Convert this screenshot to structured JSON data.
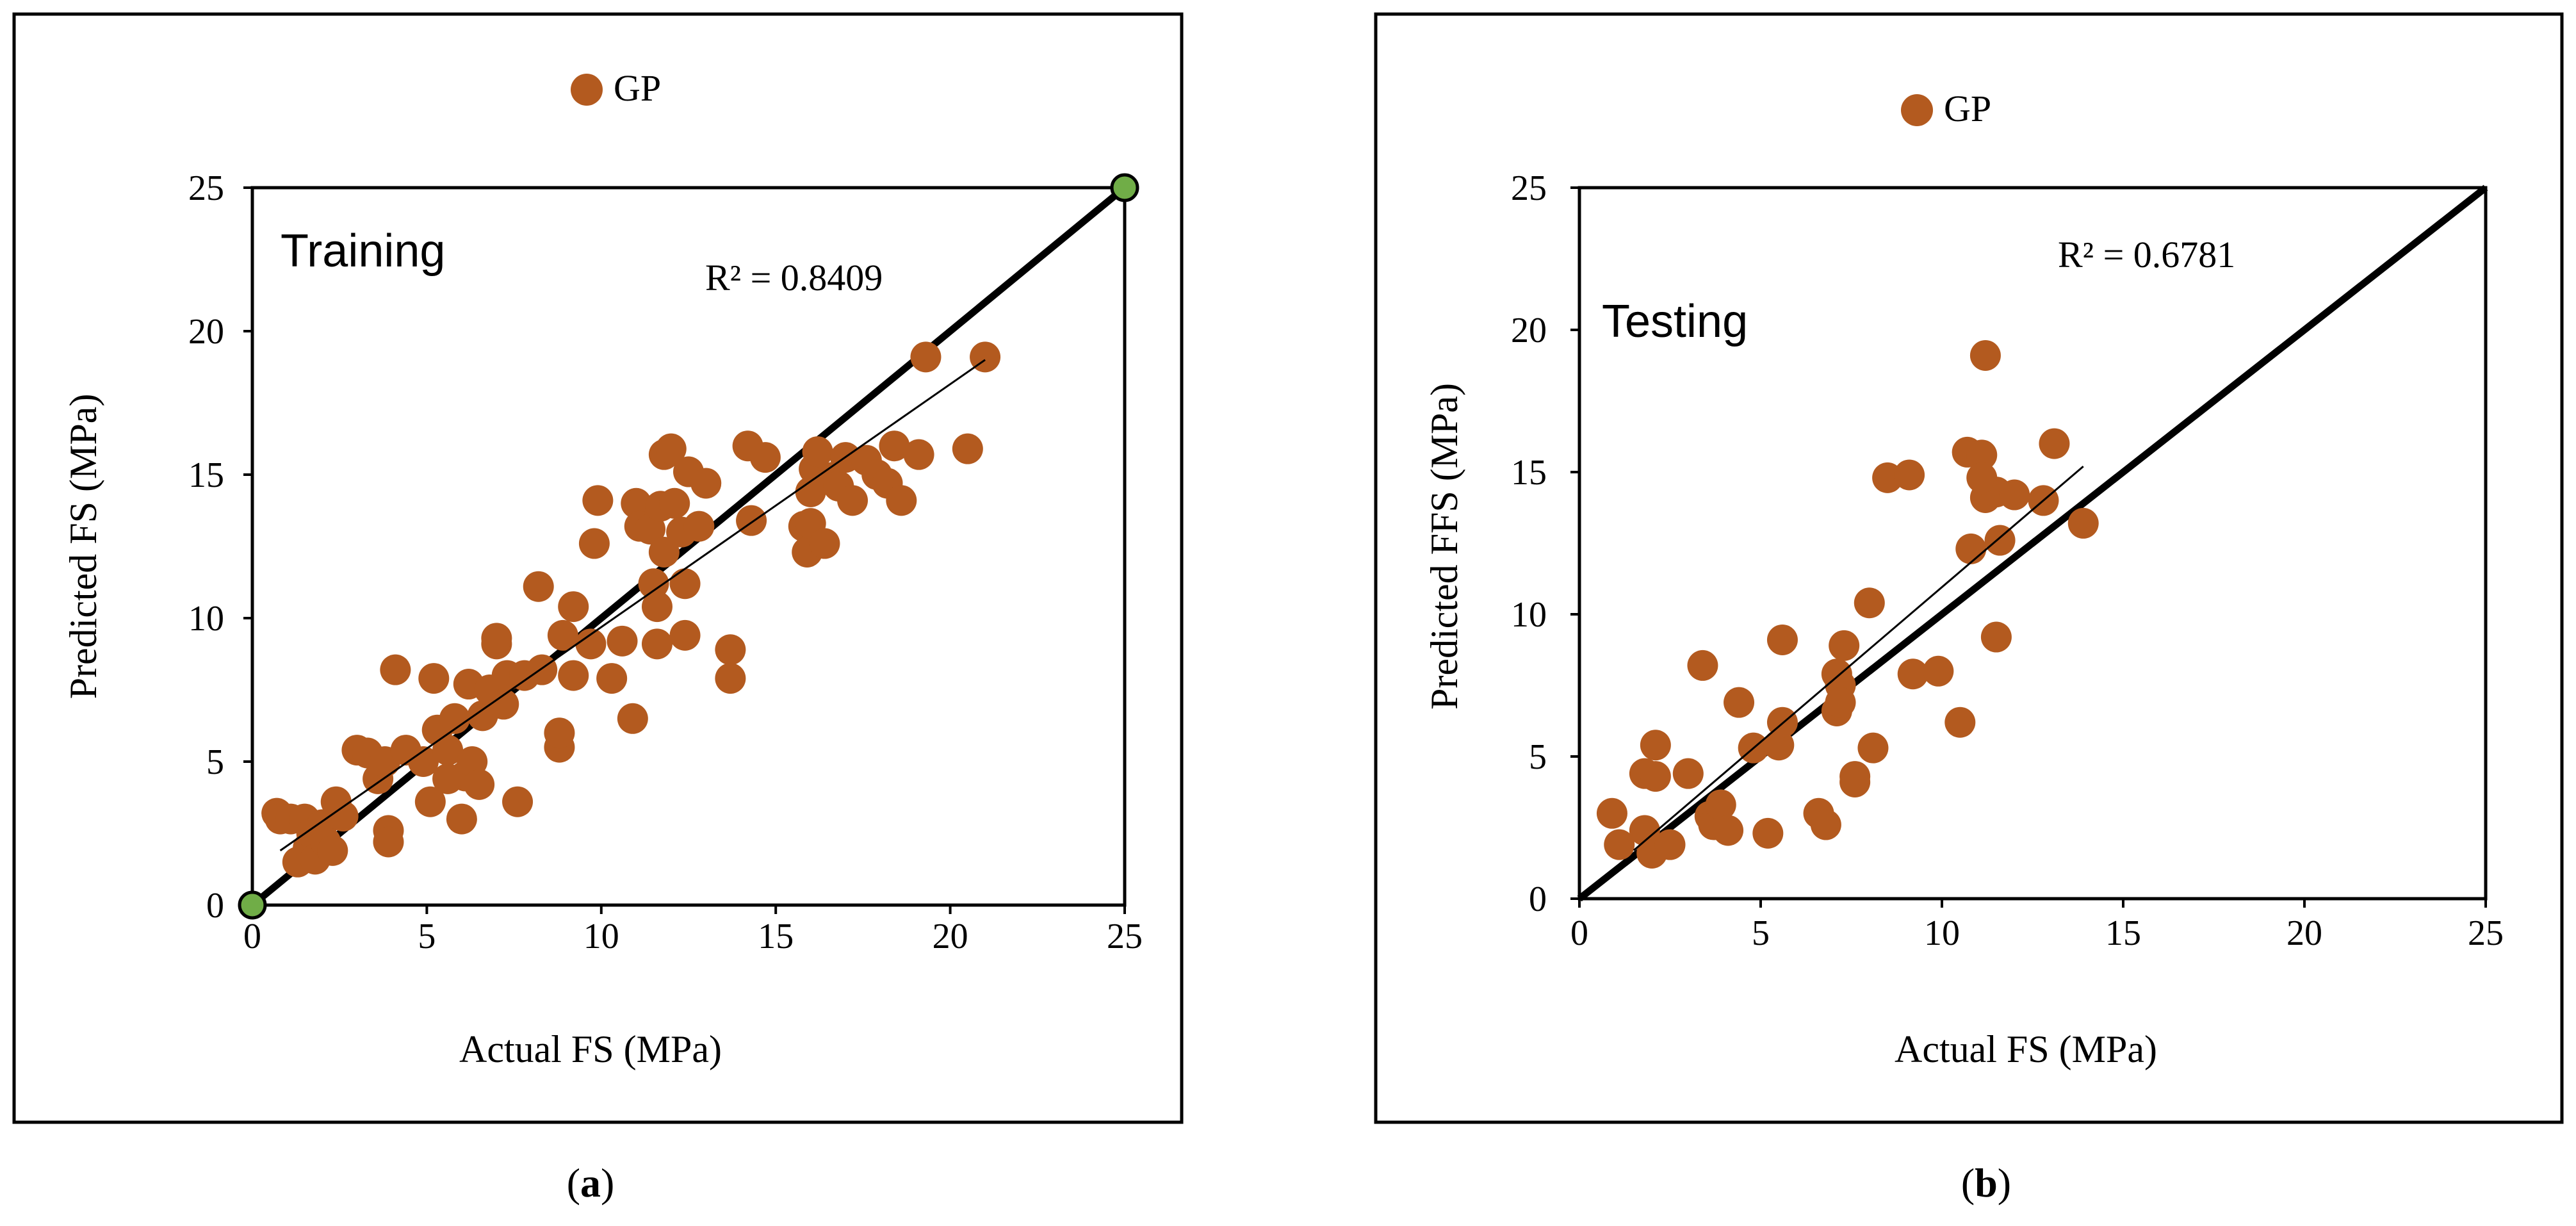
{
  "colors": {
    "point": "#b35a1f",
    "endpoint": "#70ad47"
  },
  "chart_data": [
    {
      "type": "scatter",
      "panel_title": "Training",
      "legend": "GP",
      "xlabel": "Actual FS (MPa)",
      "ylabel": "Predicted FS (MPa)",
      "xlim": [
        0,
        25
      ],
      "ylim": [
        0,
        25
      ],
      "xticks": [
        "0",
        "5",
        "10",
        "15",
        "20",
        "25"
      ],
      "yticks": [
        "0",
        "5",
        "10",
        "15",
        "20",
        "25"
      ],
      "r2_label": "R² = 0.8409",
      "caption_letter": "a",
      "identity_line": [
        [
          0,
          0
        ],
        [
          25,
          25
        ]
      ],
      "trend_line": [
        [
          0.8,
          1.9
        ],
        [
          21,
          19
        ]
      ],
      "endpoints": [
        [
          0,
          0
        ],
        [
          25,
          25
        ]
      ],
      "points": [
        [
          0.7,
          3.2
        ],
        [
          0.8,
          3.0
        ],
        [
          1.1,
          3.0
        ],
        [
          1.3,
          1.5
        ],
        [
          1.5,
          3.0
        ],
        [
          1.6,
          2.0
        ],
        [
          1.7,
          2.5
        ],
        [
          1.8,
          1.6
        ],
        [
          2.0,
          2.8
        ],
        [
          2.1,
          2.2
        ],
        [
          2.3,
          1.9
        ],
        [
          2.4,
          3.6
        ],
        [
          2.6,
          3.1
        ],
        [
          3.0,
          5.4
        ],
        [
          3.3,
          5.3
        ],
        [
          3.6,
          4.4
        ],
        [
          3.8,
          5.0
        ],
        [
          3.9,
          2.6
        ],
        [
          3.9,
          2.2
        ],
        [
          4.1,
          8.2
        ],
        [
          4.4,
          5.4
        ],
        [
          4.9,
          5.0
        ],
        [
          5.1,
          3.6
        ],
        [
          5.2,
          7.9
        ],
        [
          5.3,
          6.1
        ],
        [
          5.6,
          4.4
        ],
        [
          5.6,
          5.4
        ],
        [
          5.8,
          6.5
        ],
        [
          6.0,
          3.0
        ],
        [
          6.1,
          4.5
        ],
        [
          6.2,
          7.7
        ],
        [
          6.3,
          5.0
        ],
        [
          6.5,
          4.2
        ],
        [
          6.6,
          6.6
        ],
        [
          6.8,
          7.5
        ],
        [
          7.0,
          9.1
        ],
        [
          7.0,
          9.3
        ],
        [
          7.2,
          7.0
        ],
        [
          7.3,
          8.0
        ],
        [
          7.6,
          3.6
        ],
        [
          7.8,
          8.0
        ],
        [
          8.2,
          11.1
        ],
        [
          8.3,
          8.2
        ],
        [
          8.8,
          5.5
        ],
        [
          8.8,
          6.0
        ],
        [
          8.9,
          9.4
        ],
        [
          9.2,
          8.0
        ],
        [
          9.2,
          10.4
        ],
        [
          9.7,
          9.1
        ],
        [
          9.8,
          12.6
        ],
        [
          9.9,
          14.1
        ],
        [
          10.3,
          7.9
        ],
        [
          10.6,
          9.2
        ],
        [
          10.9,
          6.5
        ],
        [
          11.0,
          14.0
        ],
        [
          11.1,
          13.2
        ],
        [
          11.4,
          13.1
        ],
        [
          11.5,
          11.2
        ],
        [
          11.6,
          9.1
        ],
        [
          11.6,
          10.4
        ],
        [
          11.7,
          13.9
        ],
        [
          11.8,
          15.7
        ],
        [
          11.8,
          12.3
        ],
        [
          12.0,
          15.9
        ],
        [
          12.1,
          14.0
        ],
        [
          12.3,
          13.0
        ],
        [
          12.4,
          11.2
        ],
        [
          12.4,
          9.4
        ],
        [
          12.5,
          15.1
        ],
        [
          12.8,
          13.2
        ],
        [
          13.0,
          14.7
        ],
        [
          13.7,
          8.9
        ],
        [
          13.7,
          7.9
        ],
        [
          14.2,
          16.0
        ],
        [
          14.3,
          13.4
        ],
        [
          14.7,
          15.6
        ],
        [
          15.8,
          13.2
        ],
        [
          15.9,
          12.3
        ],
        [
          16.0,
          13.3
        ],
        [
          16.0,
          14.4
        ],
        [
          16.1,
          15.2
        ],
        [
          16.2,
          15.8
        ],
        [
          16.4,
          12.6
        ],
        [
          16.6,
          14.9
        ],
        [
          16.8,
          14.6
        ],
        [
          17.0,
          15.6
        ],
        [
          17.2,
          14.1
        ],
        [
          17.6,
          15.5
        ],
        [
          17.9,
          15.0
        ],
        [
          18.2,
          14.7
        ],
        [
          18.4,
          16.0
        ],
        [
          18.6,
          14.1
        ],
        [
          19.1,
          15.7
        ],
        [
          19.3,
          19.1
        ],
        [
          20.5,
          15.9
        ],
        [
          21.0,
          19.1
        ]
      ]
    },
    {
      "type": "scatter",
      "panel_title": "Testing",
      "legend": "GP",
      "xlabel": "Actual FS (MPa)",
      "ylabel": "Predicted  FFS (MPa)",
      "xlim": [
        0,
        25
      ],
      "ylim": [
        0,
        25
      ],
      "xticks": [
        "0",
        "5",
        "10",
        "15",
        "20",
        "25"
      ],
      "yticks": [
        "0",
        "5",
        "10",
        "15",
        "20",
        "25"
      ],
      "r2_label": "R² = 0.6781",
      "caption_letter": "b",
      "identity_line": [
        [
          0,
          0
        ],
        [
          25,
          25
        ]
      ],
      "trend_line": [
        [
          1.5,
          1.7
        ],
        [
          13.9,
          15.2
        ]
      ],
      "points": [
        [
          0.9,
          3.0
        ],
        [
          1.1,
          1.9
        ],
        [
          1.8,
          4.4
        ],
        [
          1.8,
          2.4
        ],
        [
          2.0,
          1.6
        ],
        [
          2.1,
          4.3
        ],
        [
          2.1,
          5.4
        ],
        [
          2.5,
          1.9
        ],
        [
          3.0,
          4.4
        ],
        [
          3.4,
          8.2
        ],
        [
          3.6,
          2.9
        ],
        [
          3.7,
          2.6
        ],
        [
          3.9,
          3.3
        ],
        [
          4.1,
          2.4
        ],
        [
          4.4,
          6.9
        ],
        [
          4.8,
          5.3
        ],
        [
          5.2,
          2.3
        ],
        [
          5.5,
          5.4
        ],
        [
          5.6,
          6.2
        ],
        [
          5.6,
          9.1
        ],
        [
          6.6,
          3.0
        ],
        [
          6.8,
          2.6
        ],
        [
          7.1,
          6.6
        ],
        [
          7.1,
          7.9
        ],
        [
          7.2,
          7.5
        ],
        [
          7.2,
          6.9
        ],
        [
          7.3,
          8.9
        ],
        [
          7.6,
          4.3
        ],
        [
          7.6,
          4.1
        ],
        [
          8.0,
          10.4
        ],
        [
          8.1,
          5.3
        ],
        [
          8.5,
          14.8
        ],
        [
          9.1,
          14.9
        ],
        [
          9.2,
          7.9
        ],
        [
          9.9,
          8.0
        ],
        [
          10.5,
          6.2
        ],
        [
          10.7,
          15.7
        ],
        [
          10.8,
          12.3
        ],
        [
          11.1,
          15.6
        ],
        [
          11.2,
          19.1
        ],
        [
          11.2,
          14.1
        ],
        [
          11.5,
          14.3
        ],
        [
          11.5,
          9.2
        ],
        [
          11.6,
          12.6
        ],
        [
          12.0,
          14.2
        ],
        [
          12.8,
          14.0
        ],
        [
          13.1,
          16.0
        ],
        [
          13.9,
          13.2
        ],
        [
          11.1,
          14.8
        ]
      ]
    }
  ]
}
